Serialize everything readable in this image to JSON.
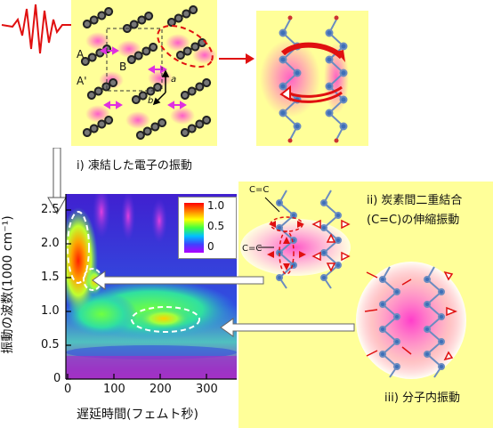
{
  "labels": {
    "step1": "i) 凍結した電子の振動",
    "step2_line1": "ii) 炭素間二重結合",
    "step2_line2": "(C=C)の伸縮振動",
    "step3": "iii) 分子内振動",
    "cc_top": "C=C",
    "cc_side": "C=C",
    "mol_A": "A",
    "mol_A_prime": "A'",
    "mol_B": "B",
    "axis_a": "a",
    "axis_b": "b"
  },
  "plot": {
    "xlabel": "遅延時間(フェムト秒)",
    "ylabel": "振動の波数(1000 cm⁻¹)",
    "xticks": [
      "0",
      "100",
      "200",
      "300"
    ],
    "yticks": [
      "0",
      "0.5",
      "1.0",
      "1.5",
      "2.0",
      "2.5"
    ],
    "colorbar_ticks": [
      "1.0",
      "0.5",
      "0"
    ],
    "colors": {
      "background_yellow": "#ffff99",
      "arrow_red": "#e01010",
      "magenta_glow": "#ff33cc"
    }
  }
}
